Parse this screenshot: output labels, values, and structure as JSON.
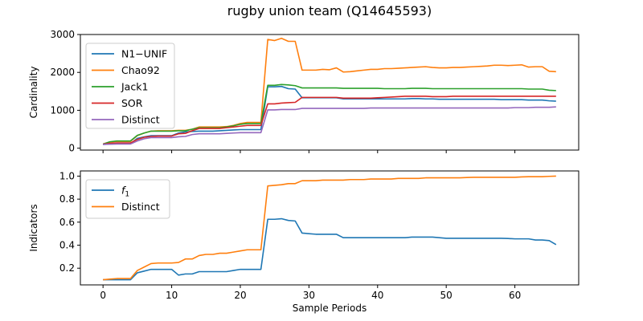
{
  "chart_data": [
    {
      "type": "line",
      "title": "rugby union team (Q14645593)",
      "xlabel": "",
      "ylabel": "Cardinality",
      "xlim": [
        -3.3,
        69.3
      ],
      "ylim": [
        -50,
        3000
      ],
      "xticks": [
        0,
        10,
        20,
        30,
        40,
        50,
        60
      ],
      "yticks": [
        0,
        1000,
        2000,
        3000
      ],
      "xtick_labels_visible": false,
      "legend": "top-left",
      "grid": false,
      "x_range": [
        0,
        66
      ],
      "series": [
        {
          "name": "N1−UNIF",
          "color": "#1f77b4",
          "values": [
            100,
            110,
            120,
            120,
            120,
            260,
            300,
            330,
            330,
            330,
            330,
            400,
            430,
            440,
            450,
            450,
            450,
            460,
            470,
            480,
            490,
            490,
            490,
            490,
            1620,
            1620,
            1630,
            1570,
            1560,
            1330,
            1330,
            1330,
            1330,
            1330,
            1330,
            1300,
            1300,
            1300,
            1300,
            1300,
            1300,
            1300,
            1300,
            1300,
            1300,
            1310,
            1310,
            1300,
            1300,
            1290,
            1290,
            1290,
            1290,
            1290,
            1290,
            1290,
            1290,
            1290,
            1280,
            1280,
            1280,
            1280,
            1270,
            1270,
            1270,
            1250,
            1240
          ]
        },
        {
          "name": "Chao92",
          "color": "#ff7f0e",
          "values": [
            110,
            160,
            180,
            180,
            180,
            330,
            400,
            450,
            460,
            460,
            460,
            470,
            470,
            500,
            560,
            560,
            560,
            560,
            570,
            600,
            650,
            680,
            680,
            680,
            2870,
            2840,
            2900,
            2820,
            2820,
            2060,
            2060,
            2060,
            2080,
            2070,
            2120,
            2010,
            2020,
            2040,
            2060,
            2080,
            2080,
            2100,
            2100,
            2110,
            2120,
            2130,
            2140,
            2150,
            2130,
            2120,
            2120,
            2130,
            2130,
            2140,
            2150,
            2160,
            2170,
            2190,
            2190,
            2180,
            2190,
            2200,
            2140,
            2150,
            2150,
            2030,
            2020
          ]
        },
        {
          "name": "Jack1",
          "color": "#2ca02c",
          "values": [
            110,
            170,
            190,
            190,
            190,
            340,
            400,
            450,
            450,
            450,
            450,
            460,
            460,
            500,
            540,
            540,
            540,
            540,
            560,
            590,
            630,
            650,
            650,
            650,
            1660,
            1660,
            1680,
            1670,
            1650,
            1590,
            1590,
            1590,
            1590,
            1590,
            1590,
            1580,
            1580,
            1580,
            1580,
            1580,
            1580,
            1570,
            1570,
            1570,
            1570,
            1580,
            1580,
            1580,
            1570,
            1570,
            1570,
            1570,
            1570,
            1570,
            1570,
            1570,
            1570,
            1570,
            1570,
            1570,
            1570,
            1570,
            1560,
            1560,
            1560,
            1530,
            1520
          ]
        },
        {
          "name": "SOR",
          "color": "#d62728",
          "values": [
            105,
            130,
            140,
            140,
            140,
            230,
            290,
            310,
            320,
            320,
            320,
            380,
            390,
            460,
            520,
            520,
            520,
            520,
            540,
            560,
            580,
            600,
            600,
            600,
            1170,
            1170,
            1190,
            1200,
            1210,
            1340,
            1340,
            1340,
            1340,
            1340,
            1340,
            1320,
            1320,
            1320,
            1320,
            1320,
            1330,
            1340,
            1350,
            1360,
            1370,
            1370,
            1370,
            1370,
            1360,
            1360,
            1360,
            1370,
            1370,
            1370,
            1370,
            1370,
            1370,
            1370,
            1370,
            1370,
            1370,
            1370,
            1370,
            1370,
            1370,
            1370,
            1370
          ]
        },
        {
          "name": "Distinct",
          "color": "#9467bd",
          "values": [
            100,
            105,
            110,
            110,
            110,
            190,
            250,
            280,
            280,
            280,
            280,
            300,
            310,
            360,
            380,
            380,
            380,
            380,
            390,
            400,
            410,
            410,
            410,
            410,
            1010,
            1010,
            1020,
            1020,
            1020,
            1050,
            1050,
            1050,
            1050,
            1050,
            1050,
            1050,
            1050,
            1050,
            1050,
            1060,
            1060,
            1060,
            1060,
            1060,
            1060,
            1060,
            1060,
            1060,
            1060,
            1060,
            1060,
            1060,
            1060,
            1060,
            1060,
            1060,
            1060,
            1060,
            1060,
            1060,
            1070,
            1070,
            1070,
            1080,
            1080,
            1080,
            1090
          ]
        }
      ]
    },
    {
      "type": "line",
      "title": "",
      "xlabel": "Sample Periods",
      "ylabel": "Indicators",
      "xlim": [
        -3.3,
        69.3
      ],
      "ylim": [
        0.055,
        1.045
      ],
      "xticks": [
        0,
        10,
        20,
        30,
        40,
        50,
        60
      ],
      "yticks": [
        0.2,
        0.4,
        0.6,
        0.8,
        1.0
      ],
      "xtick_labels_visible": true,
      "legend": "top-left",
      "grid": false,
      "x_range": [
        0,
        66
      ],
      "series": [
        {
          "name": "f",
          "name_subscript": "1",
          "color": "#1f77b4",
          "values": [
            0.1,
            0.1,
            0.1,
            0.1,
            0.1,
            0.16,
            0.175,
            0.19,
            0.19,
            0.19,
            0.19,
            0.14,
            0.15,
            0.15,
            0.17,
            0.17,
            0.17,
            0.17,
            0.17,
            0.18,
            0.19,
            0.19,
            0.19,
            0.19,
            0.625,
            0.625,
            0.63,
            0.615,
            0.61,
            0.505,
            0.5,
            0.495,
            0.495,
            0.495,
            0.495,
            0.465,
            0.465,
            0.465,
            0.465,
            0.465,
            0.465,
            0.465,
            0.465,
            0.465,
            0.465,
            0.47,
            0.47,
            0.47,
            0.47,
            0.465,
            0.46,
            0.46,
            0.46,
            0.46,
            0.46,
            0.46,
            0.46,
            0.46,
            0.46,
            0.458,
            0.455,
            0.455,
            0.455,
            0.445,
            0.445,
            0.44,
            0.405
          ]
        },
        {
          "name": "Distinct",
          "color": "#ff7f0e",
          "values": [
            0.1,
            0.105,
            0.11,
            0.11,
            0.11,
            0.18,
            0.21,
            0.24,
            0.245,
            0.245,
            0.245,
            0.25,
            0.28,
            0.28,
            0.31,
            0.32,
            0.32,
            0.33,
            0.33,
            0.34,
            0.35,
            0.36,
            0.36,
            0.36,
            0.915,
            0.92,
            0.925,
            0.935,
            0.935,
            0.96,
            0.96,
            0.96,
            0.965,
            0.965,
            0.965,
            0.965,
            0.97,
            0.97,
            0.97,
            0.975,
            0.975,
            0.975,
            0.975,
            0.98,
            0.98,
            0.98,
            0.98,
            0.985,
            0.985,
            0.985,
            0.985,
            0.985,
            0.985,
            0.988,
            0.99,
            0.99,
            0.99,
            0.99,
            0.99,
            0.99,
            0.99,
            0.993,
            0.995,
            0.995,
            0.995,
            0.998,
            1.0
          ]
        }
      ]
    }
  ]
}
